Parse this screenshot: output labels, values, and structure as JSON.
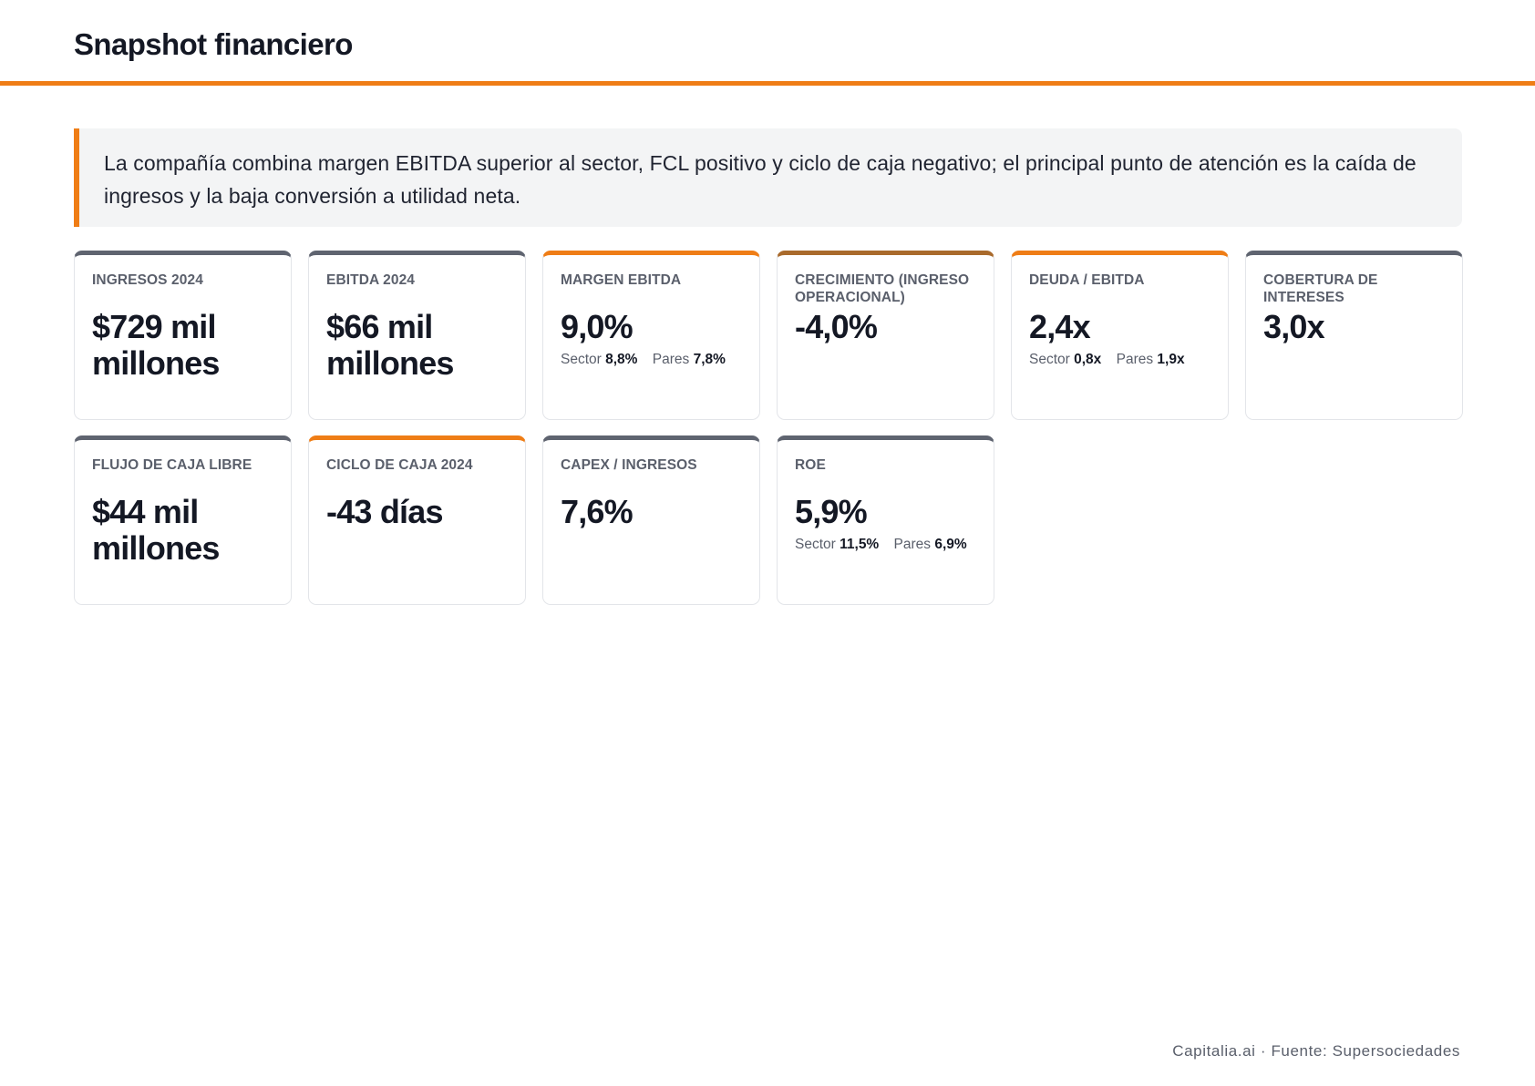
{
  "header": {
    "title": "Snapshot financiero"
  },
  "summary": {
    "text": "La compañía combina margen EBITDA superior al sector, FCL positivo y ciclo de caja negativo; el principal punto de atención es la caída de ingresos y la baja conversión a utilidad neta."
  },
  "accent_color": "#ef7d16",
  "cards": [
    {
      "label": "INGRESOS 2024",
      "value": "$729 mil millones"
    },
    {
      "label": "EBITDA 2024",
      "value": "$66 mil millones"
    },
    {
      "label": "MARGEN EBITDA",
      "value": "9,0%",
      "sector_label": "Sector",
      "sector_value": "8,8%",
      "peers_label": "Pares",
      "peers_value": "7,8%"
    },
    {
      "label": "CRECIMIENTO (INGRESO OPERACIONAL)",
      "value": "-4,0%"
    },
    {
      "label": "DEUDA / EBITDA",
      "value": "2,4x",
      "sector_label": "Sector",
      "sector_value": "0,8x",
      "peers_label": "Pares",
      "peers_value": "1,9x"
    },
    {
      "label": "COBERTURA DE INTERESES",
      "value": "3,0x"
    },
    {
      "label": "FLUJO DE CAJA LIBRE",
      "value": "$44 mil millones"
    },
    {
      "label": "CICLO DE CAJA 2024",
      "value": "-43 días"
    },
    {
      "label": "CAPEX / INGRESOS",
      "value": "7,6%"
    },
    {
      "label": "ROE",
      "value": "5,9%",
      "sector_label": "Sector",
      "sector_value": "11,5%",
      "peers_label": "Pares",
      "peers_value": "6,9%"
    }
  ],
  "footer": {
    "text": "Capitalia.ai · Fuente: Supersociedades"
  }
}
